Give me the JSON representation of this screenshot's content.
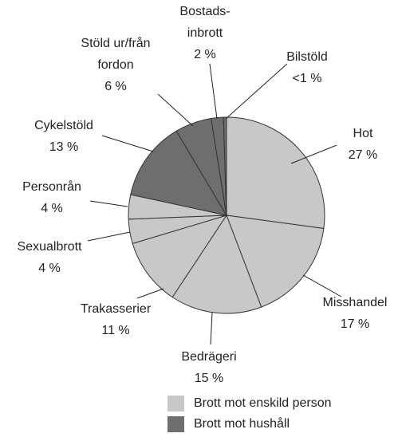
{
  "chart_data": {
    "type": "pie",
    "categories": [
      "Hot",
      "Misshandel",
      "Bedrägeri",
      "Trakasserier",
      "Sexualbrott",
      "Personrån",
      "Cykelstöld",
      "Stöld ur/från\nfordon",
      "Bostads-\ninbrott",
      "Bilstöld"
    ],
    "values": [
      27,
      17,
      15,
      11,
      4,
      4,
      13,
      6,
      2,
      0.5
    ],
    "value_labels": [
      "27 %",
      "17 %",
      "15 %",
      "11 %",
      "4 %",
      "4 %",
      "13 %",
      "6 %",
      "2 %",
      "<1 %"
    ],
    "colors": [
      "#c8c8c8",
      "#c8c8c8",
      "#c8c8c8",
      "#c8c8c8",
      "#c8c8c8",
      "#c8c8c8",
      "#6e6e6e",
      "#6e6e6e",
      "#6e6e6e",
      "#6e6e6e"
    ],
    "legend": [
      {
        "label": "Brott mot enskild person",
        "color": "#c8c8c8"
      },
      {
        "label": "Brott mot hushåll",
        "color": "#6e6e6e"
      }
    ]
  }
}
